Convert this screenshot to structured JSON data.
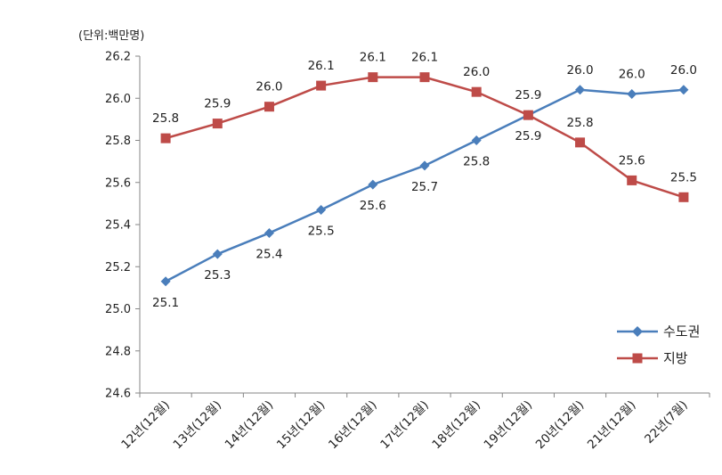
{
  "chart_data": {
    "type": "line",
    "unit_label": "(단위:백만명)",
    "categories": [
      "12년(12월)",
      "13년(12월)",
      "14년(12월)",
      "15년(12월)",
      "16년(12월)",
      "17년(12월)",
      "18년(12월)",
      "19년(12월)",
      "20년(12월)",
      "21년(12월)",
      "22년(7월)"
    ],
    "ylim": [
      24.6,
      26.2
    ],
    "yticks": [
      "24.6",
      "24.8",
      "25.0",
      "25.2",
      "25.4",
      "25.6",
      "25.8",
      "26.0",
      "26.2"
    ],
    "legend_position": "right",
    "series": [
      {
        "name": "수도권",
        "color": "#4A7EBB",
        "marker": "diamond",
        "label_position": "below-except-last3",
        "values": [
          25.13,
          25.26,
          25.36,
          25.47,
          25.59,
          25.68,
          25.8,
          25.92,
          26.04,
          26.02,
          26.04
        ],
        "labels": [
          "25.1",
          "25.3",
          "25.4",
          "25.5",
          "25.6",
          "25.7",
          "25.8",
          "25.9",
          "26.0",
          "26.0",
          "26.0"
        ]
      },
      {
        "name": "지방",
        "color": "#BE4B48",
        "marker": "square",
        "label_position": "above-except-last",
        "values": [
          25.81,
          25.88,
          25.96,
          26.06,
          26.1,
          26.1,
          26.03,
          25.92,
          25.79,
          25.61,
          25.53
        ],
        "labels": [
          "25.8",
          "25.9",
          "26.0",
          "26.1",
          "26.1",
          "26.1",
          "26.0",
          "25.9",
          "25.8",
          "25.6",
          "25.5"
        ]
      }
    ]
  }
}
